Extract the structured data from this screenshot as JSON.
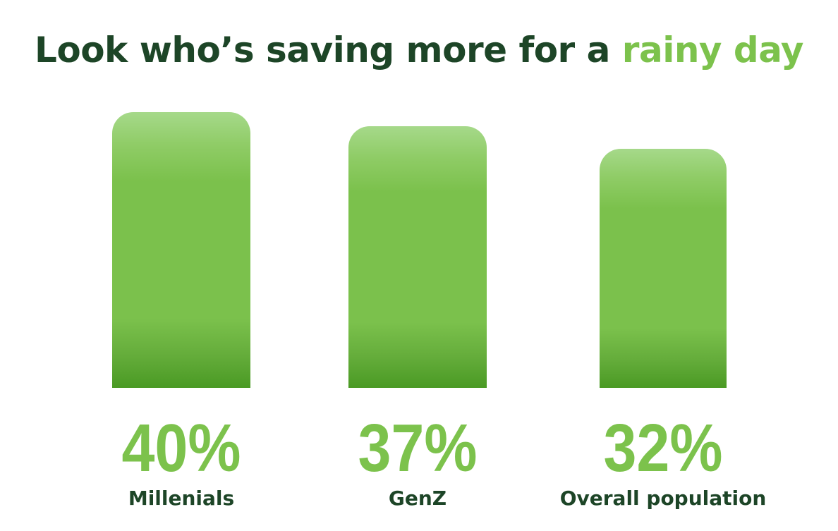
{
  "chart_data": {
    "type": "bar",
    "title": "Look who’s saving more for a",
    "title_accent": "rainy day",
    "categories": [
      "Millenials",
      "GenZ",
      "Overall population"
    ],
    "values": [
      40,
      37,
      32
    ],
    "data_labels": [
      "40%",
      "37%",
      "32%"
    ],
    "unit": "%",
    "grid": false,
    "colors": {
      "title": "#1d4527",
      "accent": "#7cc24c",
      "bar": "#7bc14c"
    }
  }
}
